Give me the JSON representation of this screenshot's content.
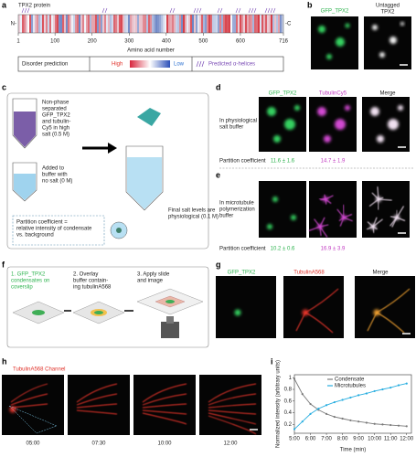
{
  "a": {
    "label": "a",
    "title": "TPX2 protein",
    "n_term": "N-",
    "c_term": "-C",
    "ticks": [
      1,
      100,
      200,
      300,
      400,
      500,
      600,
      716
    ],
    "axis_label": "Amino acid number",
    "legend": {
      "title": "Disorder prediction",
      "high": "High",
      "low": "Low",
      "helices": "Predicted α-helices"
    }
  },
  "b": {
    "label": "b",
    "gfp": "GFP_TPX2",
    "untagged": [
      "Untagged",
      "TPX2"
    ]
  },
  "c": {
    "label": "c",
    "tube1": [
      "Non-phase",
      "separated",
      "GFP_TPX2",
      "and tubulin-",
      "Cy5 in high",
      "salt (0.5 M)"
    ],
    "tube2": [
      "Added to",
      "buffer with",
      "no salt (0 M)"
    ],
    "final": [
      "Final salt levels are",
      "physiological (0.1 M)"
    ],
    "partition": [
      "Partition coefficient =",
      "relative intensity of condensate",
      "vs. background"
    ]
  },
  "d": {
    "label": "d",
    "columns": [
      "GFP_TPX2",
      "TubulinCy5",
      "Merge"
    ],
    "condition": [
      "In physiological",
      "salt buffer"
    ],
    "partition_label": "Partition coefficient",
    "partition_values": [
      "11.6 ± 1.6",
      "14.7 ± 1.9"
    ]
  },
  "e": {
    "label": "e",
    "condition": [
      "In microtubule",
      "polymerization",
      "buffer"
    ],
    "partition_label": "Partition coefficient",
    "partition_values": [
      "10.2 ± 0.6",
      "16.9 ± 3.9"
    ]
  },
  "f": {
    "label": "f",
    "step1": [
      "1. GFP_TPX2",
      "condensates on",
      "coverslip"
    ],
    "step2": [
      "2. Overlay",
      "buffer contain-",
      "ing tubulinA568"
    ],
    "step3": [
      "3. Apply slide",
      "and image"
    ]
  },
  "g": {
    "label": "g",
    "columns": [
      "GFP_TPX2",
      "TubulinA568",
      "Merge"
    ]
  },
  "h": {
    "label": "h",
    "title": "TubulinA568 Channel",
    "times": [
      "05:00",
      "07:30",
      "10:00",
      "12:00"
    ]
  },
  "i": {
    "label": "i",
    "chart": {
      "type": "line",
      "ylabel": "Normalized intensity (arbitrary units)",
      "xlabel": "Time (min)",
      "x": [
        5,
        5.5,
        6,
        6.5,
        7,
        7.5,
        8,
        8.5,
        9,
        9.5,
        10,
        10.5,
        11,
        11.5,
        12
      ],
      "series": [
        {
          "name": "Condensate",
          "color": "#7a7a7a",
          "values": [
            0.98,
            0.72,
            0.55,
            0.45,
            0.38,
            0.33,
            0.3,
            0.27,
            0.25,
            0.23,
            0.21,
            0.2,
            0.19,
            0.18,
            0.17
          ]
        },
        {
          "name": "Microtubules",
          "color": "#29aee0",
          "values": [
            0.12,
            0.25,
            0.38,
            0.47,
            0.53,
            0.58,
            0.62,
            0.66,
            0.7,
            0.73,
            0.77,
            0.8,
            0.83,
            0.87,
            0.9
          ]
        }
      ],
      "xlim": [
        5,
        12.3
      ],
      "ylim": [
        0.05,
        1.05
      ],
      "xticks": [
        {
          "value": 5,
          "label": "5:00"
        },
        {
          "value": 6,
          "label": "6:00"
        },
        {
          "value": 7,
          "label": "7:00"
        },
        {
          "value": 8,
          "label": "8:00"
        },
        {
          "value": 9,
          "label": "9:00"
        },
        {
          "value": 10,
          "label": "10:00"
        },
        {
          "value": 11,
          "label": "11:00"
        },
        {
          "value": 12,
          "label": "12:00"
        }
      ],
      "yticks": [
        0.2,
        0.4,
        0.6,
        0.8,
        1
      ]
    }
  }
}
